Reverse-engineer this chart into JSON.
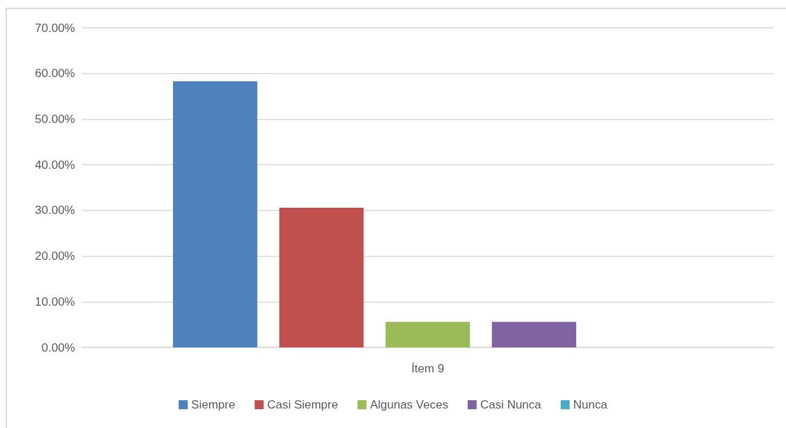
{
  "chart_data": {
    "type": "bar",
    "categories": [
      "Ítem 9"
    ],
    "series": [
      {
        "name": "Siempre",
        "color": "#4f81bd",
        "values": [
          58.3
        ]
      },
      {
        "name": "Casi Siempre",
        "color": "#c0504d",
        "values": [
          30.6
        ]
      },
      {
        "name": "Algunas Veces",
        "color": "#9bbb59",
        "values": [
          5.6
        ]
      },
      {
        "name": "Casi Nunca",
        "color": "#8064a2",
        "values": [
          5.6
        ]
      },
      {
        "name": "Nunca",
        "color": "#4bacc6",
        "values": [
          0
        ]
      }
    ],
    "ylim": [
      0,
      70
    ],
    "yticks": [
      {
        "value": 0,
        "label": "0.00%"
      },
      {
        "value": 10,
        "label": "10.00%"
      },
      {
        "value": 20,
        "label": "20.00%"
      },
      {
        "value": 30,
        "label": "30.00%"
      },
      {
        "value": 40,
        "label": "40.00%"
      },
      {
        "value": 50,
        "label": "50.00%"
      },
      {
        "value": 60,
        "label": "60.00%"
      },
      {
        "value": 70,
        "label": "70.00%"
      }
    ],
    "grid": "y",
    "legend": "bottom"
  }
}
